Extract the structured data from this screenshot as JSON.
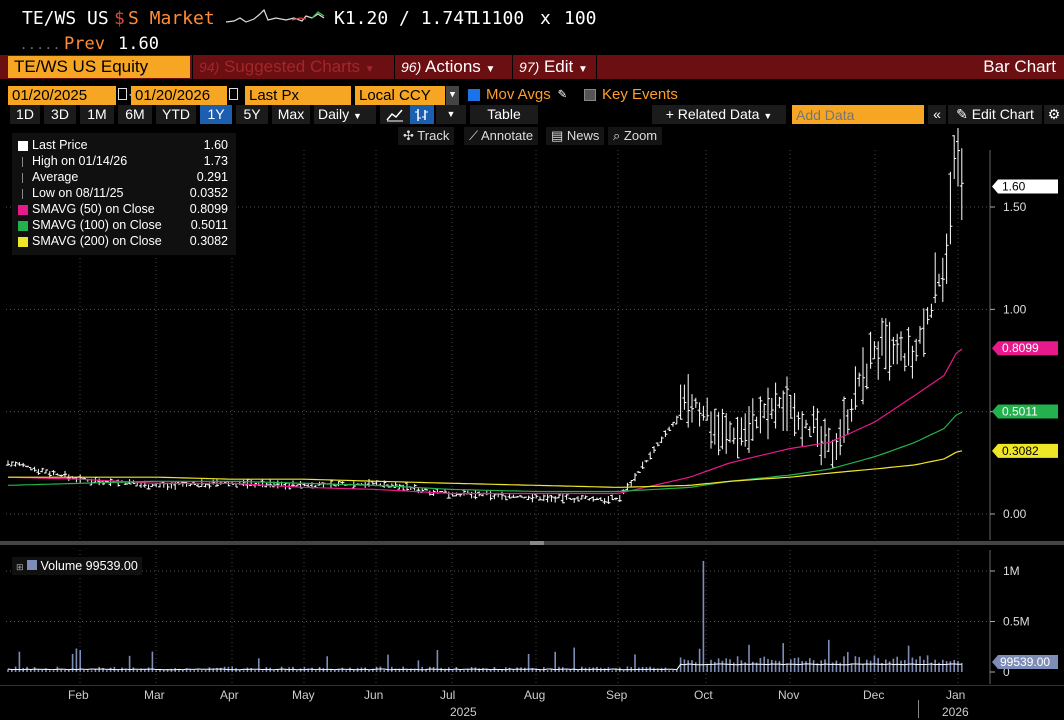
{
  "ticker": {
    "title": "TE/WS US",
    "ccy": "$",
    "market": "S Market",
    "k_price": "K1.20 / 1.74T",
    "size": "11100",
    "x": "x",
    "ask_size": "100",
    "prev_label": "Prev",
    "prev_value": "1.60",
    "prev_dots": "....."
  },
  "toolbar": {
    "security": "TE/WS US Equity",
    "suggested_num": "94)",
    "suggested_label": "Suggested Charts",
    "actions_num": "96)",
    "actions_label": "Actions",
    "edit_num": "97)",
    "edit_label": "Edit",
    "title": "Bar Chart"
  },
  "controls": {
    "start_date": "01/20/2025",
    "dash": "-",
    "end_date": "01/20/2026",
    "price_field": "Last Px",
    "currency": "Local CCY",
    "mov_avgs": "Mov Avgs",
    "key_events": "Key Events"
  },
  "periods": {
    "items": [
      "1D",
      "3D",
      "1M",
      "6M",
      "YTD",
      "1Y",
      "5Y",
      "Max"
    ],
    "selected": "1Y",
    "frequency": "Daily",
    "table": "Table",
    "related": "+ Related Data",
    "add_data_placeholder": "Add Data",
    "edit_chart": "Edit Chart",
    "track": "Track",
    "annotate": "Annotate",
    "news": "News",
    "zoom": "Zoom"
  },
  "legend": [
    {
      "name": "Last Price",
      "value": "1.60",
      "color": "#ffffff"
    },
    {
      "name": "High on 01/14/26",
      "value": "1.73",
      "color": "#888888"
    },
    {
      "name": "Average",
      "value": "0.291",
      "color": "#888888"
    },
    {
      "name": "Low on 08/11/25",
      "value": "0.0352",
      "color": "#888888"
    },
    {
      "name": "SMAVG (50)  on Close",
      "value": "0.8099",
      "color": "#e8198b"
    },
    {
      "name": "SMAVG (100)  on Close",
      "value": "0.5011",
      "color": "#22b14c"
    },
    {
      "name": "SMAVG (200)  on Close",
      "value": "0.3082",
      "color": "#f0e628"
    }
  ],
  "price_axis": {
    "ticks": [
      "1.50",
      "1.00",
      "0.50",
      "0.00"
    ],
    "last_tag": "1.60",
    "sma50_tag": "0.8099",
    "sma100_tag": "0.5011",
    "sma200_tag": "0.3082"
  },
  "volume": {
    "legend": "Volume 99539.00",
    "ticks": [
      "1M",
      "0.5M",
      "0"
    ],
    "last_tag": "99539.00"
  },
  "x_axis": {
    "months": [
      "Feb",
      "Mar",
      "Apr",
      "May",
      "Jun",
      "Jul",
      "Aug",
      "Sep",
      "Oct",
      "Nov",
      "Dec",
      "Jan"
    ],
    "years": [
      "2025",
      "2026"
    ]
  },
  "chart_data": {
    "type": "line",
    "title": "",
    "ylabel": "",
    "xlabel": "",
    "ylim": [
      0,
      1.75
    ],
    "x": [
      "2025-01",
      "2025-02",
      "2025-03",
      "2025-04",
      "2025-05",
      "2025-06",
      "2025-07",
      "2025-08",
      "2025-09",
      "2025-10-01",
      "2025-10-15",
      "2025-11-01",
      "2025-11-15",
      "2025-12-01",
      "2025-12-15",
      "2026-01-01",
      "2026-01-14",
      "2026-01-20"
    ],
    "series": [
      {
        "name": "Last Price",
        "values": [
          0.25,
          0.17,
          0.14,
          0.15,
          0.14,
          0.15,
          0.1,
          0.08,
          0.07,
          0.55,
          0.38,
          0.55,
          0.3,
          0.8,
          0.75,
          1.25,
          1.73,
          1.6
        ]
      },
      {
        "name": "SMAVG (50)",
        "values": [
          0.18,
          0.17,
          0.15,
          0.15,
          0.13,
          0.12,
          0.1,
          0.1,
          0.1,
          0.18,
          0.25,
          0.32,
          0.35,
          0.45,
          0.58,
          0.68,
          0.78,
          0.81
        ]
      },
      {
        "name": "SMAVG (100)",
        "values": [
          0.14,
          0.15,
          0.16,
          0.16,
          0.15,
          0.14,
          0.12,
          0.11,
          0.11,
          0.13,
          0.16,
          0.19,
          0.22,
          0.28,
          0.35,
          0.42,
          0.48,
          0.5
        ]
      },
      {
        "name": "SMAVG (200)",
        "values": [
          0.18,
          0.18,
          0.18,
          0.17,
          0.17,
          0.16,
          0.15,
          0.14,
          0.13,
          0.14,
          0.16,
          0.18,
          0.2,
          0.22,
          0.24,
          0.27,
          0.3,
          0.31
        ]
      }
    ],
    "volume_series": {
      "name": "Volume",
      "peak_value": 1100000,
      "last_value": 99539
    }
  }
}
